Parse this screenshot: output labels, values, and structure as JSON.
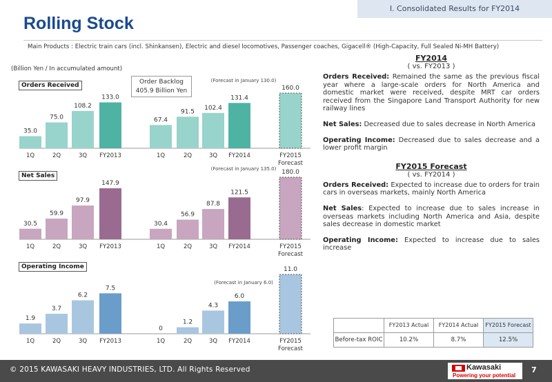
{
  "header": {
    "section": "I. Consolidated Results for FY2014",
    "title": "Rolling Stock",
    "products": "Main Products : Electric train cars (incl. Shinkansen), Electric and diesel locomotives, Passenger coaches, Gigacell® (High-Capacity, Full Sealed Ni-MH Battery)",
    "unit_note": "(Billion Yen / In accumulated amount)"
  },
  "backlog": {
    "line1": "Order Backlog",
    "line2": "405.9 Billion Yen"
  },
  "colors": {
    "light_teal": "#98d4cb",
    "dark_teal": "#4fb3a3",
    "light_purple": "#c8a6bf",
    "dark_purple": "#9a6b91",
    "light_blue": "#a9c6e0",
    "dark_blue": "#6a9dc9",
    "brand_blue": "#1b4a8e",
    "logo_red": "#d40000"
  },
  "chart_data": [
    {
      "type": "bar",
      "title": "Orders Received",
      "categories": [
        "1Q",
        "2Q",
        "3Q",
        "FY2013",
        "1Q",
        "2Q",
        "3Q",
        "FY2014",
        "FY2015 Forecast"
      ],
      "values": [
        35.0,
        75.0,
        108.2,
        133.0,
        67.4,
        91.5,
        102.4,
        131.4,
        160.0
      ],
      "value_labels": [
        "35.0",
        "75.0",
        "108.2",
        "133.0",
        "67.4",
        "91.5",
        "102.4",
        "131.4",
        "160.0"
      ],
      "forecast_note": "(Forecast in January 130.0)",
      "ylim": [
        0,
        160
      ]
    },
    {
      "type": "bar",
      "title": "Net Sales",
      "categories": [
        "1Q",
        "2Q",
        "3Q",
        "FY2013",
        "1Q",
        "2Q",
        "3Q",
        "FY2014",
        "FY2015 Forecast"
      ],
      "values": [
        30.5,
        59.9,
        97.9,
        147.9,
        30.4,
        56.9,
        87.8,
        121.5,
        180.0
      ],
      "value_labels": [
        "30.5",
        "59.9",
        "97.9",
        "147.9",
        "30.4",
        "56.9",
        "87.8",
        "121.5",
        "180.0"
      ],
      "forecast_note": "(Forecast in January 135.0)",
      "ylim": [
        0,
        180
      ]
    },
    {
      "type": "bar",
      "title": "Operating Income",
      "categories": [
        "1Q",
        "2Q",
        "3Q",
        "FY2013",
        "1Q",
        "2Q",
        "3Q",
        "FY2014",
        "FY2015 Forecast"
      ],
      "values": [
        1.9,
        3.7,
        6.2,
        7.5,
        0,
        1.2,
        4.3,
        6.0,
        11.0
      ],
      "value_labels": [
        "1.9",
        "3.7",
        "6.2",
        "7.5",
        "0",
        "1.2",
        "4.3",
        "6.0",
        "11.0"
      ],
      "forecast_note": "(Forecast in January 6.0)",
      "ylim": [
        0,
        11
      ]
    }
  ],
  "right": {
    "fy2014": {
      "heading": "FY2014",
      "sub": "( vs.  FY2013 )",
      "paras": [
        {
          "label": "Orders Received:",
          "text": " Remained the same as the previous fiscal year where a large-scale orders for North America and domestic market were received, despite MRT car orders received from the Singapore Land Transport Authority for new railway lines"
        },
        {
          "label": "Net Sales:",
          "text": " Decreased due to sales decrease in North America"
        },
        {
          "label": "Operating Income:",
          "text": " Decreased due to sales decrease and a lower profit margin"
        }
      ]
    },
    "fy2015": {
      "heading": "FY2015 Forecast",
      "sub": "( vs.  FY2014 )",
      "paras": [
        {
          "label": "Orders Received:",
          "text": " Expected to increase due to orders for train cars in overseas markets, mainly North America"
        },
        {
          "label": "Net Sales",
          "text": ":  Expected to increase due to sales increase in overseas markets including North America and Asia, despite sales decrease in domestic market"
        },
        {
          "label": "Operating Income:",
          "text": " Expected to increase due to sales increase"
        }
      ]
    }
  },
  "roic_table": {
    "headers": [
      "",
      "FY2013 Actual",
      "FY2014 Actual",
      "FY2015 Forecast"
    ],
    "row_label": "Before-tax ROIC",
    "values": [
      "10.2%",
      "8.7%",
      "12.5%"
    ]
  },
  "footer": {
    "copyright": "© 2015 KAWASAKI HEAVY INDUSTRIES, LTD. All Rights Reserved",
    "logo_word": "Kawasaki",
    "logo_tag": "Powering your potential",
    "page_number": "7"
  }
}
